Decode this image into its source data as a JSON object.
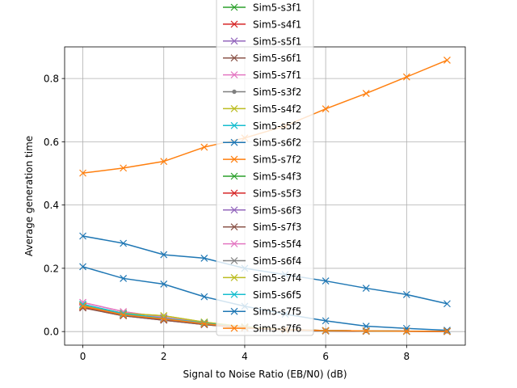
{
  "chart_data": {
    "type": "line",
    "title": "",
    "xlabel": "Signal to Noise Ratio (EB/N0) (dB)",
    "ylabel": "Average generation time",
    "xlim": [
      -0.45,
      9.45
    ],
    "ylim": [
      -0.043,
      0.9
    ],
    "x_ticks": [
      0,
      2,
      4,
      6,
      8
    ],
    "y_ticks": [
      0.0,
      0.2,
      0.4,
      0.6,
      0.8
    ],
    "x_tick_labels": [
      "0",
      "2",
      "4",
      "6",
      "8"
    ],
    "y_tick_labels": [
      "0.0",
      "0.2",
      "0.4",
      "0.6",
      "0.8"
    ],
    "grid": true,
    "legend_position": "top-center",
    "x": [
      0,
      1,
      2,
      3,
      4,
      5,
      6,
      7,
      8,
      9
    ],
    "series": [
      {
        "name": "Sim5-s3f1",
        "color": "#2ca02c",
        "marker": "x",
        "values": [
          0.08,
          0.053,
          0.04,
          0.025,
          0.012,
          0.006,
          0.003,
          0.002,
          0.001,
          0.001
        ]
      },
      {
        "name": "Sim5-s4f1",
        "color": "#d62728",
        "marker": "x",
        "values": [
          0.078,
          0.052,
          0.038,
          0.024,
          0.012,
          0.006,
          0.003,
          0.002,
          0.001,
          0.001
        ]
      },
      {
        "name": "Sim5-s5f1",
        "color": "#9467bd",
        "marker": "x",
        "values": [
          0.082,
          0.055,
          0.04,
          0.026,
          0.013,
          0.006,
          0.003,
          0.002,
          0.001,
          0.001
        ]
      },
      {
        "name": "Sim5-s6f1",
        "color": "#8c564b",
        "marker": "x",
        "values": [
          0.075,
          0.05,
          0.036,
          0.022,
          0.011,
          0.005,
          0.002,
          0.001,
          0.001,
          0.0
        ]
      },
      {
        "name": "Sim5-s7f1",
        "color": "#e377c2",
        "marker": "x",
        "values": [
          0.092,
          0.063,
          0.045,
          0.028,
          0.014,
          0.007,
          0.003,
          0.002,
          0.001,
          0.001
        ]
      },
      {
        "name": "Sim5-s3f2",
        "color": "#7f7f7f",
        "marker": "o",
        "values": [
          0.08,
          0.054,
          0.04,
          0.025,
          0.012,
          0.006,
          0.003,
          0.002,
          0.001,
          0.001
        ]
      },
      {
        "name": "Sim5-s4f2",
        "color": "#bcbd22",
        "marker": "x",
        "values": [
          0.084,
          0.058,
          0.05,
          0.03,
          0.015,
          0.007,
          0.003,
          0.002,
          0.001,
          0.001
        ]
      },
      {
        "name": "Sim5-s5f2",
        "color": "#17becf",
        "marker": "x",
        "values": [
          0.086,
          0.057,
          0.042,
          0.027,
          0.013,
          0.006,
          0.003,
          0.002,
          0.001,
          0.001
        ]
      },
      {
        "name": "Sim5-s6f2",
        "color": "#1f77b4",
        "marker": "x",
        "values": [
          0.302,
          0.279,
          0.243,
          0.232,
          0.2,
          0.18,
          0.16,
          0.137,
          0.117,
          0.088
        ]
      },
      {
        "name": "Sim5-s7f2",
        "color": "#ff7f0e",
        "marker": "x",
        "values": [
          0.501,
          0.517,
          0.538,
          0.583,
          0.612,
          0.65,
          0.704,
          0.753,
          0.805,
          0.858
        ]
      },
      {
        "name": "Sim5-s4f3",
        "color": "#2ca02c",
        "marker": "x",
        "values": [
          0.08,
          0.053,
          0.04,
          0.025,
          0.012,
          0.006,
          0.003,
          0.002,
          0.001,
          0.001
        ]
      },
      {
        "name": "Sim5-s5f3",
        "color": "#d62728",
        "marker": "x",
        "values": [
          0.078,
          0.052,
          0.038,
          0.024,
          0.012,
          0.006,
          0.003,
          0.002,
          0.001,
          0.001
        ]
      },
      {
        "name": "Sim5-s6f3",
        "color": "#9467bd",
        "marker": "x",
        "values": [
          0.082,
          0.055,
          0.04,
          0.026,
          0.013,
          0.006,
          0.003,
          0.002,
          0.001,
          0.001
        ]
      },
      {
        "name": "Sim5-s7f3",
        "color": "#8c564b",
        "marker": "x",
        "values": [
          0.075,
          0.05,
          0.036,
          0.022,
          0.011,
          0.005,
          0.002,
          0.001,
          0.001,
          0.0
        ]
      },
      {
        "name": "Sim5-s5f4",
        "color": "#e377c2",
        "marker": "x",
        "values": [
          0.092,
          0.063,
          0.045,
          0.028,
          0.014,
          0.007,
          0.003,
          0.002,
          0.001,
          0.001
        ]
      },
      {
        "name": "Sim5-s6f4",
        "color": "#7f7f7f",
        "marker": "x",
        "values": [
          0.08,
          0.054,
          0.04,
          0.025,
          0.012,
          0.006,
          0.003,
          0.002,
          0.001,
          0.001
        ]
      },
      {
        "name": "Sim5-s7f4",
        "color": "#bcbd22",
        "marker": "x",
        "values": [
          0.084,
          0.058,
          0.05,
          0.03,
          0.015,
          0.007,
          0.003,
          0.002,
          0.001,
          0.001
        ]
      },
      {
        "name": "Sim5-s6f5",
        "color": "#17becf",
        "marker": "x",
        "values": [
          0.086,
          0.057,
          0.042,
          0.027,
          0.013,
          0.006,
          0.003,
          0.002,
          0.001,
          0.001
        ]
      },
      {
        "name": "Sim5-s7f5",
        "color": "#1f77b4",
        "marker": "x",
        "values": [
          0.205,
          0.168,
          0.15,
          0.11,
          0.08,
          0.055,
          0.034,
          0.017,
          0.01,
          0.004
        ]
      },
      {
        "name": "Sim5-s7f6",
        "color": "#ff7f0e",
        "marker": "x",
        "values": [
          0.08,
          0.053,
          0.04,
          0.025,
          0.012,
          0.006,
          0.003,
          0.002,
          0.001,
          0.001
        ]
      }
    ]
  }
}
